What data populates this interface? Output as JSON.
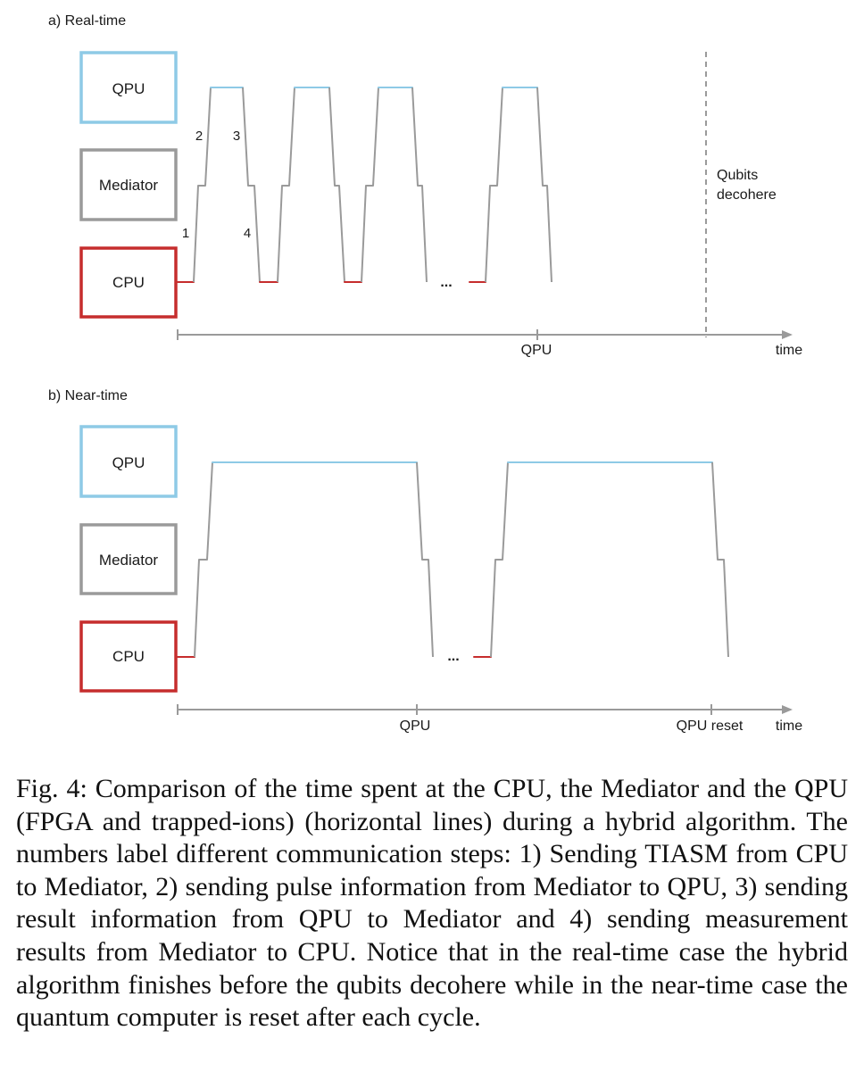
{
  "figure": {
    "colors": {
      "qpu": "#8ecae6",
      "mediator": "#9a9a9a",
      "cpu": "#c62d2d",
      "axis": "#9a9a9a",
      "trace": "#9a9a9a"
    },
    "panel_a": {
      "title": "a) Real-time",
      "boxes": {
        "qpu": "QPU",
        "mediator": "Mediator",
        "cpu": "CPU"
      },
      "steps": [
        "1",
        "2",
        "3",
        "4"
      ],
      "ellipsis": "...",
      "decohere_label_line1": "Qubits",
      "decohere_label_line2": "decohere",
      "axis_tick_label": "QPU",
      "axis_label": "time"
    },
    "panel_b": {
      "title": "b) Near-time",
      "boxes": {
        "qpu": "QPU",
        "mediator": "Mediator",
        "cpu": "CPU"
      },
      "ellipsis": "...",
      "axis_tick_label": "QPU",
      "axis_tick_label_2": "QPU reset",
      "axis_label": "time"
    }
  },
  "caption": "Fig. 4: Comparison of the time spent at the CPU, the Mediator and the QPU (FPGA and trapped-ions) (horizontal lines) during a hybrid algorithm. The numbers label different communication steps: 1) Sending TIASM from CPU to Mediator, 2) sending pulse information from Mediator to QPU, 3) sending result information from QPU to Mediator and 4) sending measurement results from Mediator to CPU. Notice that in the real-time case the hybrid algorithm finishes before the qubits decohere while in the near-time case the quantum computer is reset after each cycle."
}
